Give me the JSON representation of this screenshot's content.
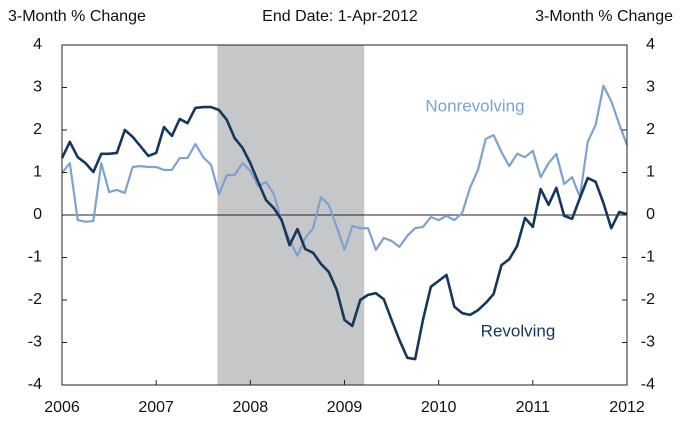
{
  "chart_data": {
    "type": "line",
    "title": "End Date: 1-Apr-2012",
    "y_label": "3-Month % Change",
    "y2_label": "3-Month % Change",
    "x": [
      2006,
      2006.083,
      2006.167,
      2006.25,
      2006.333,
      2006.417,
      2006.5,
      2006.583,
      2006.667,
      2006.75,
      2006.833,
      2006.917,
      2007,
      2007.083,
      2007.167,
      2007.25,
      2007.333,
      2007.417,
      2007.5,
      2007.583,
      2007.667,
      2007.75,
      2007.833,
      2007.917,
      2008,
      2008.083,
      2008.167,
      2008.25,
      2008.333,
      2008.417,
      2008.5,
      2008.583,
      2008.667,
      2008.75,
      2008.833,
      2008.917,
      2009,
      2009.083,
      2009.167,
      2009.25,
      2009.333,
      2009.417,
      2009.5,
      2009.583,
      2009.667,
      2009.75,
      2009.833,
      2009.917,
      2010,
      2010.083,
      2010.167,
      2010.25,
      2010.333,
      2010.417,
      2010.5,
      2010.583,
      2010.667,
      2010.75,
      2010.833,
      2010.917,
      2011,
      2011.083,
      2011.167,
      2011.25,
      2011.333,
      2011.417,
      2011.5,
      2011.583,
      2011.667,
      2011.75,
      2011.833,
      2011.917,
      2012
    ],
    "series": [
      {
        "name": "Revolving",
        "color": "#16375c",
        "values": [
          1.34,
          1.72,
          1.36,
          1.22,
          1.01,
          1.44,
          1.44,
          1.46,
          2.0,
          1.84,
          1.62,
          1.39,
          1.46,
          2.07,
          1.86,
          2.26,
          2.16,
          2.52,
          2.54,
          2.54,
          2.47,
          2.24,
          1.81,
          1.58,
          1.22,
          0.78,
          0.35,
          0.16,
          -0.12,
          -0.71,
          -0.33,
          -0.8,
          -0.89,
          -1.15,
          -1.34,
          -1.76,
          -2.47,
          -2.61,
          -2.0,
          -1.88,
          -1.84,
          -1.98,
          -2.47,
          -2.94,
          -3.36,
          -3.39,
          -2.47,
          -1.69,
          -1.55,
          -1.41,
          -2.16,
          -2.31,
          -2.35,
          -2.24,
          -2.07,
          -1.86,
          -1.18,
          -1.04,
          -0.73,
          -0.07,
          -0.28,
          0.61,
          0.24,
          0.64,
          -0.02,
          -0.09,
          0.4,
          0.87,
          0.78,
          0.28,
          -0.31,
          0.07,
          0.02
        ]
      },
      {
        "name": "Nonrevolving",
        "color": "#7ea2cf",
        "values": [
          0.99,
          1.22,
          -0.12,
          -0.16,
          -0.14,
          1.22,
          0.54,
          0.59,
          0.52,
          1.13,
          1.15,
          1.13,
          1.13,
          1.06,
          1.06,
          1.34,
          1.34,
          1.67,
          1.36,
          1.18,
          0.49,
          0.94,
          0.94,
          1.22,
          1.04,
          0.68,
          0.78,
          0.49,
          -0.16,
          -0.59,
          -0.96,
          -0.54,
          -0.31,
          0.42,
          0.24,
          -0.28,
          -0.82,
          -0.26,
          -0.31,
          -0.31,
          -0.82,
          -0.54,
          -0.61,
          -0.75,
          -0.49,
          -0.31,
          -0.28,
          -0.05,
          -0.12,
          -0.02,
          -0.12,
          0.05,
          0.64,
          1.06,
          1.79,
          1.88,
          1.48,
          1.15,
          1.44,
          1.36,
          1.51,
          0.89,
          1.22,
          1.44,
          0.73,
          0.89,
          0.42,
          1.72,
          2.12,
          3.04,
          2.68,
          2.14,
          1.65
        ]
      }
    ],
    "recession": [
      2007.65,
      2009.21
    ],
    "recession_color": "#c6c7c9",
    "xlim": [
      2006,
      2012
    ],
    "xticks": [
      2006,
      2007,
      2008,
      2009,
      2010,
      2011,
      2012
    ],
    "ylim": [
      -4,
      4
    ],
    "yticks": [
      -4,
      -3,
      -2,
      -1,
      0,
      1,
      2,
      3,
      4
    ],
    "y2lim": [
      -4,
      4
    ],
    "y2ticks": [
      -4,
      -3,
      -2,
      -1,
      0,
      1,
      2,
      3,
      4
    ]
  }
}
